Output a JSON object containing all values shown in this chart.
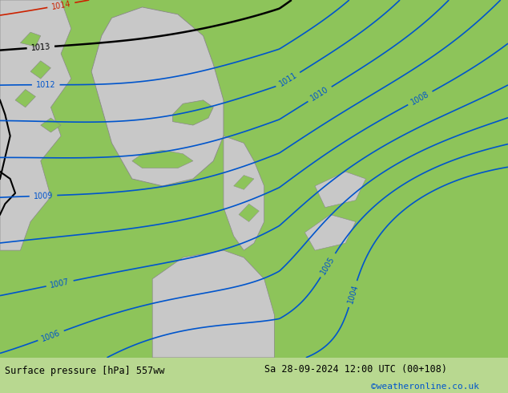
{
  "title_left": "Surface pressure [hPa] 557ww",
  "title_right": "Sa 28-09-2024 12:00 UTC (00+108)",
  "credit": "©weatheronline.co.uk",
  "bg_green": "#8dc45a",
  "sea_gray": "#c8c8c8",
  "coast_gray": "#888888",
  "blue": "#0055cc",
  "black": "#000000",
  "red": "#cc2200",
  "bar_bg": "#b8d890",
  "bar_text": "#000000",
  "credit_color": "#0055cc",
  "fig_width": 6.34,
  "fig_height": 4.9,
  "dpi": 100
}
